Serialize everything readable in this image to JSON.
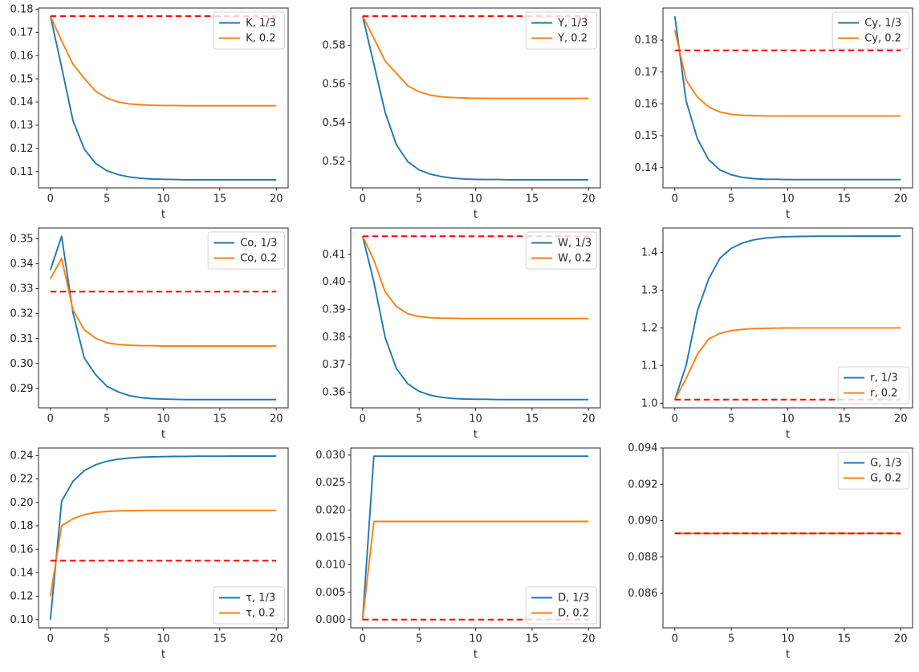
{
  "figure": {
    "background": "#ffffff",
    "xlabel": "t",
    "grid": false,
    "x_values": [
      0,
      1,
      2,
      3,
      4,
      5,
      6,
      7,
      8,
      9,
      10,
      11,
      12,
      13,
      14,
      15,
      16,
      17,
      18,
      19,
      20
    ],
    "colors": {
      "series_1_3": "#1f77b4",
      "series_0_2": "#ff7f0e",
      "steady_state": "#ff0000",
      "legend_border": "#cccccc",
      "ink": "#262626"
    }
  },
  "chart_data": [
    {
      "type": "line",
      "id": "K",
      "title": "",
      "xlabel": "t",
      "ylabel": "",
      "xlim": [
        -1.05,
        21.05
      ],
      "ylim": [
        0.103,
        0.1805
      ],
      "xticks": [
        0,
        5,
        10,
        15,
        20
      ],
      "yticks": [
        0.11,
        0.12,
        0.13,
        0.14,
        0.15,
        0.16,
        0.17,
        0.18
      ],
      "ytick_decimals": 2,
      "legend": {
        "loc": "upper right"
      },
      "series": [
        {
          "name": "K, 1/3",
          "color": "#1f77b4",
          "values": [
            0.177,
            0.155,
            0.132,
            0.1197,
            0.1136,
            0.1104,
            0.1087,
            0.1077,
            0.1071,
            0.1068,
            0.1067,
            0.1066,
            0.1065,
            0.1065,
            0.1065,
            0.1065,
            0.1065,
            0.1065,
            0.1065,
            0.1065,
            0.1065
          ]
        },
        {
          "name": "K, 0.2",
          "color": "#ff7f0e",
          "values": [
            0.177,
            0.1663,
            0.1563,
            0.1502,
            0.1447,
            0.1417,
            0.14,
            0.1392,
            0.1388,
            0.1386,
            0.1385,
            0.1385,
            0.1384,
            0.1384,
            0.1384,
            0.1384,
            0.1384,
            0.1384,
            0.1384,
            0.1384,
            0.1384
          ]
        }
      ],
      "steady_state": {
        "value": 0.177,
        "color": "#ff0000",
        "style": "dashed",
        "x_range": [
          0,
          20
        ]
      }
    },
    {
      "type": "line",
      "id": "Y",
      "title": "",
      "xlabel": "t",
      "ylabel": "",
      "xlim": [
        -1.05,
        21.05
      ],
      "ylim": [
        0.5063,
        0.5992
      ],
      "xticks": [
        0,
        5,
        10,
        15,
        20
      ],
      "yticks": [
        0.52,
        0.54,
        0.56,
        0.58
      ],
      "ytick_decimals": 2,
      "legend": {
        "loc": "upper right"
      },
      "series": [
        {
          "name": "Y, 1/3",
          "color": "#1f77b4",
          "values": [
            0.595,
            0.5702,
            0.5452,
            0.5285,
            0.5198,
            0.5156,
            0.5134,
            0.5121,
            0.5113,
            0.5109,
            0.5107,
            0.5106,
            0.5106,
            0.5105,
            0.5105,
            0.5105,
            0.5105,
            0.5105,
            0.5105,
            0.5105,
            0.5105
          ]
        },
        {
          "name": "Y, 0.2",
          "color": "#ff7f0e",
          "values": [
            0.595,
            0.5836,
            0.5718,
            0.5655,
            0.559,
            0.5559,
            0.5542,
            0.5533,
            0.5529,
            0.5527,
            0.5526,
            0.5526,
            0.5525,
            0.5525,
            0.5525,
            0.5525,
            0.5525,
            0.5525,
            0.5525,
            0.5525,
            0.5525
          ]
        }
      ],
      "steady_state": {
        "value": 0.595,
        "color": "#ff0000",
        "style": "dashed",
        "x_range": [
          0,
          20
        ]
      }
    },
    {
      "type": "line",
      "id": "Cy",
      "title": "",
      "xlabel": "t",
      "ylabel": "",
      "xlim": [
        -1.05,
        21.05
      ],
      "ylim": [
        0.1336,
        0.1901
      ],
      "xticks": [
        0,
        5,
        10,
        15,
        20
      ],
      "yticks": [
        0.14,
        0.15,
        0.16,
        0.17,
        0.18
      ],
      "ytick_decimals": 2,
      "legend": {
        "loc": "upper right"
      },
      "series": [
        {
          "name": "Cy, 1/3",
          "color": "#1f77b4",
          "values": [
            0.1875,
            0.161,
            0.149,
            0.1424,
            0.1392,
            0.1377,
            0.1369,
            0.1365,
            0.1363,
            0.1363,
            0.1362,
            0.1362,
            0.1362,
            0.1362,
            0.1362,
            0.1362,
            0.1362,
            0.1362,
            0.1362,
            0.1362,
            0.1362
          ]
        },
        {
          "name": "Cy, 0.2",
          "color": "#ff7f0e",
          "values": [
            0.1832,
            0.1675,
            0.1621,
            0.159,
            0.1574,
            0.1567,
            0.1564,
            0.1563,
            0.1562,
            0.1562,
            0.1562,
            0.1562,
            0.1562,
            0.1562,
            0.1562,
            0.1562,
            0.1562,
            0.1562,
            0.1562,
            0.1562,
            0.1562
          ]
        }
      ],
      "steady_state": {
        "value": 0.1768,
        "color": "#ff0000",
        "style": "dashed",
        "x_range": [
          0,
          20
        ]
      }
    },
    {
      "type": "line",
      "id": "Co",
      "title": "",
      "xlabel": "t",
      "ylabel": "",
      "xlim": [
        -1.05,
        21.05
      ],
      "ylim": [
        0.2822,
        0.3543
      ],
      "xticks": [
        0,
        5,
        10,
        15,
        20
      ],
      "yticks": [
        0.29,
        0.3,
        0.31,
        0.32,
        0.33,
        0.34,
        0.35
      ],
      "ytick_decimals": 2,
      "legend": {
        "loc": "upper right"
      },
      "series": [
        {
          "name": "Co, 1/3",
          "color": "#1f77b4",
          "values": [
            0.3375,
            0.351,
            0.3203,
            0.3022,
            0.2955,
            0.2909,
            0.2886,
            0.2871,
            0.2863,
            0.2859,
            0.2857,
            0.2856,
            0.2855,
            0.2855,
            0.2855,
            0.2855,
            0.2855,
            0.2855,
            0.2855,
            0.2855,
            0.2855
          ]
        },
        {
          "name": "Co, 0.2",
          "color": "#ff7f0e",
          "values": [
            0.334,
            0.3421,
            0.3215,
            0.3135,
            0.3101,
            0.3083,
            0.3076,
            0.3073,
            0.3071,
            0.3071,
            0.307,
            0.307,
            0.307,
            0.307,
            0.307,
            0.307,
            0.307,
            0.307,
            0.307,
            0.307,
            0.307
          ]
        }
      ],
      "steady_state": {
        "value": 0.3288,
        "color": "#ff0000",
        "style": "dashed",
        "x_range": [
          0,
          20
        ]
      }
    },
    {
      "type": "line",
      "id": "W",
      "title": "",
      "xlabel": "t",
      "ylabel": "",
      "xlim": [
        -1.05,
        21.05
      ],
      "ylim": [
        0.3543,
        0.4195
      ],
      "xticks": [
        0,
        5,
        10,
        15,
        20
      ],
      "yticks": [
        0.36,
        0.37,
        0.38,
        0.39,
        0.4,
        0.41
      ],
      "ytick_decimals": 2,
      "legend": {
        "loc": "upper right"
      },
      "series": [
        {
          "name": "W, 1/3",
          "color": "#1f77b4",
          "values": [
            0.4165,
            0.4,
            0.3798,
            0.3685,
            0.363,
            0.3603,
            0.3589,
            0.3581,
            0.3577,
            0.3575,
            0.3574,
            0.3574,
            0.3573,
            0.3573,
            0.3573,
            0.3573,
            0.3573,
            0.3573,
            0.3573,
            0.3573,
            0.3573
          ]
        },
        {
          "name": "W, 0.2",
          "color": "#ff7f0e",
          "values": [
            0.4165,
            0.4079,
            0.3963,
            0.391,
            0.3884,
            0.3874,
            0.387,
            0.3868,
            0.3868,
            0.3867,
            0.3867,
            0.3867,
            0.3867,
            0.3867,
            0.3867,
            0.3867,
            0.3867,
            0.3867,
            0.3867,
            0.3867,
            0.3867
          ]
        }
      ],
      "steady_state": {
        "value": 0.4165,
        "color": "#ff0000",
        "style": "dashed",
        "x_range": [
          0,
          20
        ]
      }
    },
    {
      "type": "line",
      "id": "r",
      "title": "",
      "xlabel": "t",
      "ylabel": "",
      "xlim": [
        -1.05,
        21.05
      ],
      "ylim": [
        0.9878,
        1.4648
      ],
      "xticks": [
        0,
        5,
        10,
        15,
        20
      ],
      "yticks": [
        1.0,
        1.1,
        1.2,
        1.3,
        1.4
      ],
      "ytick_decimals": 1,
      "legend": {
        "loc": "lower right"
      },
      "series": [
        {
          "name": "r, 1/3",
          "color": "#1f77b4",
          "values": [
            1.0095,
            1.1,
            1.245,
            1.33,
            1.385,
            1.411,
            1.4252,
            1.4335,
            1.438,
            1.4405,
            1.4417,
            1.4424,
            1.4428,
            1.443,
            1.4431,
            1.4431,
            1.4432,
            1.4432,
            1.4432,
            1.4432,
            1.4432
          ]
        },
        {
          "name": "r, 0.2",
          "color": "#ff7f0e",
          "values": [
            1.0095,
            1.065,
            1.13,
            1.1705,
            1.1855,
            1.1927,
            1.196,
            1.1979,
            1.1988,
            1.1993,
            1.1996,
            1.1998,
            1.1999,
            1.1999,
            1.2,
            1.2,
            1.2,
            1.2,
            1.2,
            1.2,
            1.2
          ]
        }
      ],
      "steady_state": {
        "value": 1.0095,
        "color": "#ff0000",
        "style": "dashed",
        "x_range": [
          0,
          20
        ]
      }
    },
    {
      "type": "line",
      "id": "tau",
      "title": "",
      "xlabel": "t",
      "ylabel": "",
      "xlim": [
        -1.05,
        21.05
      ],
      "ylim": [
        0.093,
        0.2464
      ],
      "xticks": [
        0,
        5,
        10,
        15,
        20
      ],
      "yticks": [
        0.1,
        0.12,
        0.14,
        0.16,
        0.18,
        0.2,
        0.22,
        0.24
      ],
      "ytick_decimals": 2,
      "legend": {
        "loc": "lower right"
      },
      "series": [
        {
          "name": "τ, 1/3",
          "color": "#1f77b4",
          "values": [
            0.1,
            0.201,
            0.218,
            0.2271,
            0.2321,
            0.2351,
            0.2369,
            0.2379,
            0.2385,
            0.2389,
            0.2391,
            0.2392,
            0.2393,
            0.2394,
            0.2394,
            0.2394,
            0.2395,
            0.2395,
            0.2395,
            0.2395,
            0.2395
          ]
        },
        {
          "name": "τ, 0.2",
          "color": "#ff7f0e",
          "values": [
            0.12,
            0.1801,
            0.1861,
            0.1896,
            0.1914,
            0.1923,
            0.1928,
            0.193,
            0.1931,
            0.1932,
            0.1932,
            0.1932,
            0.1932,
            0.1932,
            0.1932,
            0.1932,
            0.1932,
            0.1932,
            0.1932,
            0.1932,
            0.1932
          ]
        }
      ],
      "steady_state": {
        "value": 0.1503,
        "color": "#ff0000",
        "style": "dashed",
        "x_range": [
          0,
          20
        ]
      }
    },
    {
      "type": "line",
      "id": "D",
      "title": "",
      "xlabel": "t",
      "ylabel": "",
      "xlim": [
        -1.05,
        21.05
      ],
      "ylim": [
        -0.0015,
        0.0313
      ],
      "xticks": [
        0,
        5,
        10,
        15,
        20
      ],
      "yticks": [
        0.0,
        0.005,
        0.01,
        0.015,
        0.02,
        0.025,
        0.03
      ],
      "ytick_decimals": 3,
      "legend": {
        "loc": "lower right"
      },
      "series": [
        {
          "name": "D, 1/3",
          "color": "#1f77b4",
          "values": [
            0,
            0.0298,
            0.0298,
            0.0298,
            0.0298,
            0.0298,
            0.0298,
            0.0298,
            0.0298,
            0.0298,
            0.0298,
            0.0298,
            0.0298,
            0.0298,
            0.0298,
            0.0298,
            0.0298,
            0.0298,
            0.0298,
            0.0298,
            0.0298
          ]
        },
        {
          "name": "D, 0.2",
          "color": "#ff7f0e",
          "values": [
            0,
            0.0179,
            0.0179,
            0.0179,
            0.0179,
            0.0179,
            0.0179,
            0.0179,
            0.0179,
            0.0179,
            0.0179,
            0.0179,
            0.0179,
            0.0179,
            0.0179,
            0.0179,
            0.0179,
            0.0179,
            0.0179,
            0.0179,
            0.0179
          ]
        }
      ],
      "steady_state": {
        "value": 0.0,
        "color": "#ff0000",
        "style": "dashed",
        "x_range": [
          0,
          20
        ]
      }
    },
    {
      "type": "line",
      "id": "G",
      "title": "",
      "xlabel": "t",
      "ylabel": "",
      "xlim": [
        -1.05,
        21.05
      ],
      "ylim": [
        0.0841,
        0.094
      ],
      "xticks": [
        0,
        5,
        10,
        15,
        20
      ],
      "yticks": [
        0.086,
        0.088,
        0.09,
        0.092,
        0.094
      ],
      "ytick_decimals": 3,
      "legend": {
        "loc": "upper right"
      },
      "series": [
        {
          "name": "G, 1/3",
          "color": "#1f77b4",
          "values": [
            0.0893,
            0.0893,
            0.0893,
            0.0893,
            0.0893,
            0.0893,
            0.0893,
            0.0893,
            0.0893,
            0.0893,
            0.0893,
            0.0893,
            0.0893,
            0.0893,
            0.0893,
            0.0893,
            0.0893,
            0.0893,
            0.0893,
            0.0893,
            0.0893
          ]
        },
        {
          "name": "G, 0.2",
          "color": "#ff7f0e",
          "values": [
            0.0893,
            0.0893,
            0.0893,
            0.0893,
            0.0893,
            0.0893,
            0.0893,
            0.0893,
            0.0893,
            0.0893,
            0.0893,
            0.0893,
            0.0893,
            0.0893,
            0.0893,
            0.0893,
            0.0893,
            0.0893,
            0.0893,
            0.0893,
            0.0893
          ]
        }
      ],
      "steady_state": {
        "value": 0.0893,
        "color": "#ff0000",
        "style": "dashed",
        "x_range": [
          0,
          20
        ]
      }
    }
  ]
}
